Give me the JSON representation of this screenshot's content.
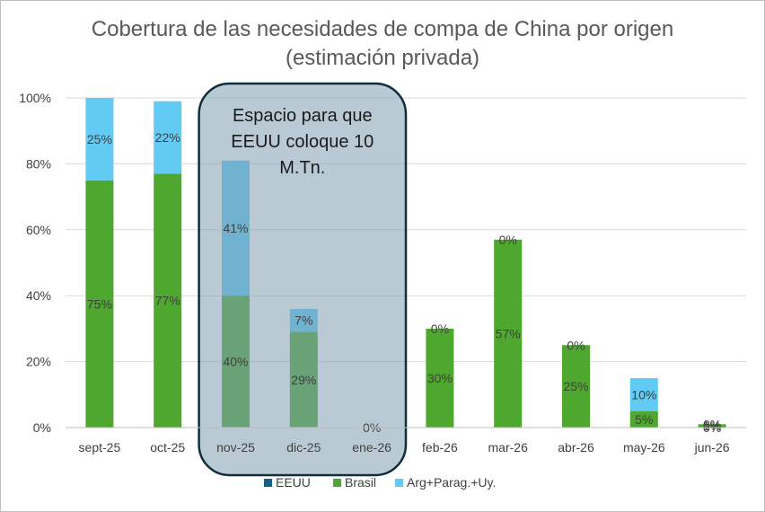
{
  "chart_data": {
    "type": "bar",
    "stacked": true,
    "title": "Cobertura de las necesidades de compa de China por origen (estimación privada)",
    "categories": [
      "sept-25",
      "oct-25",
      "nov-25",
      "dic-25",
      "ene-26",
      "feb-26",
      "mar-26",
      "abr-26",
      "may-26",
      "jun-26"
    ],
    "series": [
      {
        "name": "EEUU",
        "color": "#156082",
        "values": [
          0,
          0,
          0,
          0,
          0,
          0,
          0,
          0,
          0,
          0
        ]
      },
      {
        "name": "Brasil",
        "color": "#4ea72e",
        "values": [
          75,
          77,
          40,
          29,
          0,
          30,
          57,
          25,
          5,
          1
        ]
      },
      {
        "name": "Arg+Parag.+Uy.",
        "color": "#61cbf3",
        "values": [
          25,
          22,
          41,
          7,
          0,
          0,
          0,
          0,
          10,
          0
        ]
      }
    ],
    "data_labels": {
      "EEUU": [
        "",
        "",
        "",
        "",
        "0%",
        "",
        "",
        "",
        "",
        "0%"
      ],
      "Brasil": [
        "75%",
        "77%",
        "40%",
        "29%",
        "",
        "30%",
        "57%",
        "25%",
        "5%",
        "1%"
      ],
      "Arg+Parag.+Uy.": [
        "25%",
        "22%",
        "41%",
        "7%",
        "",
        "0%",
        "0%",
        "0%",
        "10%",
        "0%"
      ]
    },
    "ylim": [
      0,
      100
    ],
    "yticks": [
      "0%",
      "20%",
      "40%",
      "60%",
      "80%",
      "100%"
    ],
    "ytick_values": [
      0,
      20,
      40,
      60,
      80,
      100
    ],
    "grid": true,
    "legend_position": "bottom",
    "xlabel": "",
    "ylabel": "",
    "annotation": {
      "lines": [
        "Espacio para que",
        "EEUU coloque 10",
        "M.Tn."
      ],
      "spans": [
        "nov-25",
        "ene-26"
      ]
    }
  }
}
